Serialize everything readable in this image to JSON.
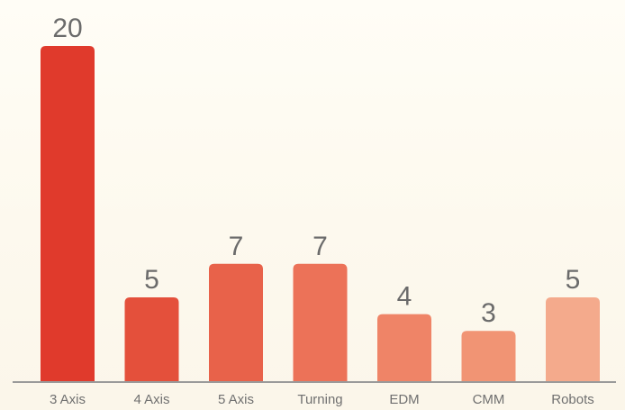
{
  "chart_data": {
    "type": "bar",
    "categories": [
      "3 Axis",
      "4 Axis",
      "5 Axis",
      "Turning",
      "EDM",
      "CMM",
      "Robots"
    ],
    "values": [
      20,
      5,
      7,
      7,
      4,
      3,
      5
    ],
    "value_labels": [
      "20",
      "5",
      "7",
      "7",
      "4",
      "3",
      "5"
    ],
    "title": "",
    "xlabel": "",
    "ylabel": "",
    "ylim": [
      0,
      20
    ],
    "grid": false,
    "legend": "none",
    "bar_colors": [
      "#e03a2c",
      "#e4503b",
      "#e8624a",
      "#ec7258",
      "#ef8467",
      "#f19474",
      "#f4aa8c"
    ],
    "axis_color": "#9a9a9a"
  }
}
